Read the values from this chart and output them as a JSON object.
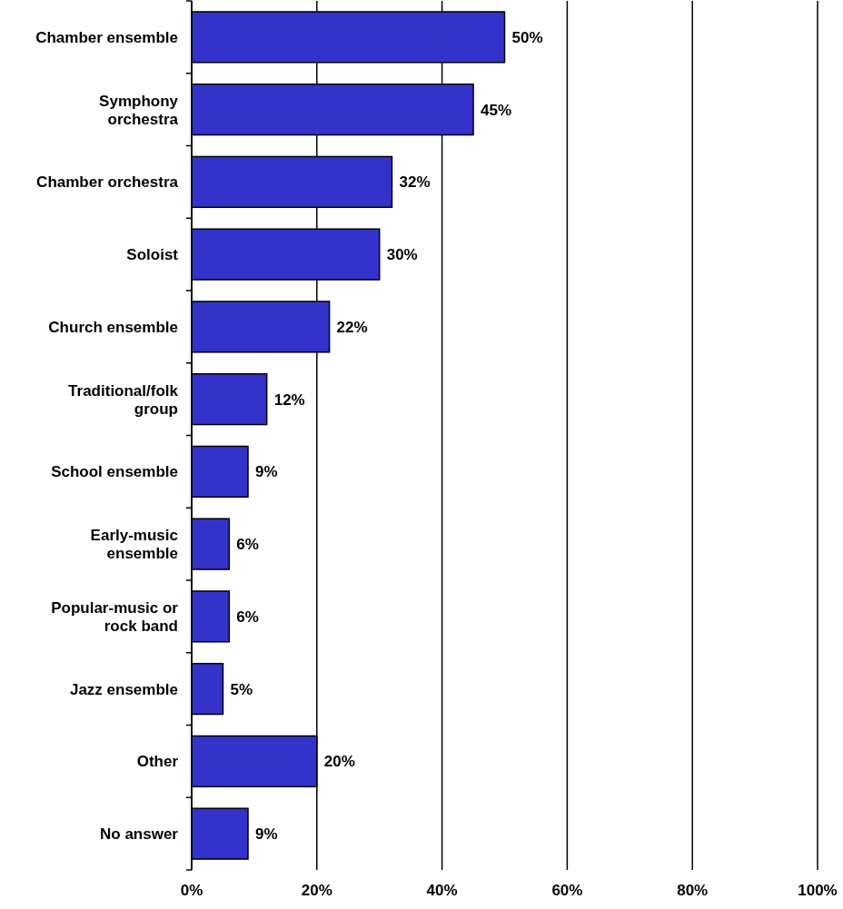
{
  "chart_data": {
    "type": "bar",
    "orientation": "horizontal",
    "categories": [
      "Chamber ensemble",
      "Symphony orchestra",
      "Chamber orchestra",
      "Soloist",
      "Church ensemble",
      "Traditional/folk group",
      "School ensemble",
      "Early-music ensemble",
      "Popular-music or rock band",
      "Jazz ensemble",
      "Other",
      "No answer"
    ],
    "values": [
      50,
      45,
      32,
      30,
      22,
      12,
      9,
      6,
      6,
      5,
      20,
      9
    ],
    "value_labels": [
      "50%",
      "45%",
      "32%",
      "30%",
      "22%",
      "12%",
      "9%",
      "6%",
      "6%",
      "5%",
      "20%",
      "9%"
    ],
    "color": "#3333cc",
    "xlim": [
      0,
      100
    ],
    "xticks": [
      {
        "value": 0,
        "label": "0%"
      },
      {
        "value": 20,
        "label": "20%"
      },
      {
        "value": 40,
        "label": "40%"
      },
      {
        "value": 60,
        "label": "60%"
      },
      {
        "value": 80,
        "label": "80%"
      },
      {
        "value": 100,
        "label": "100%"
      }
    ],
    "grid": "x"
  }
}
